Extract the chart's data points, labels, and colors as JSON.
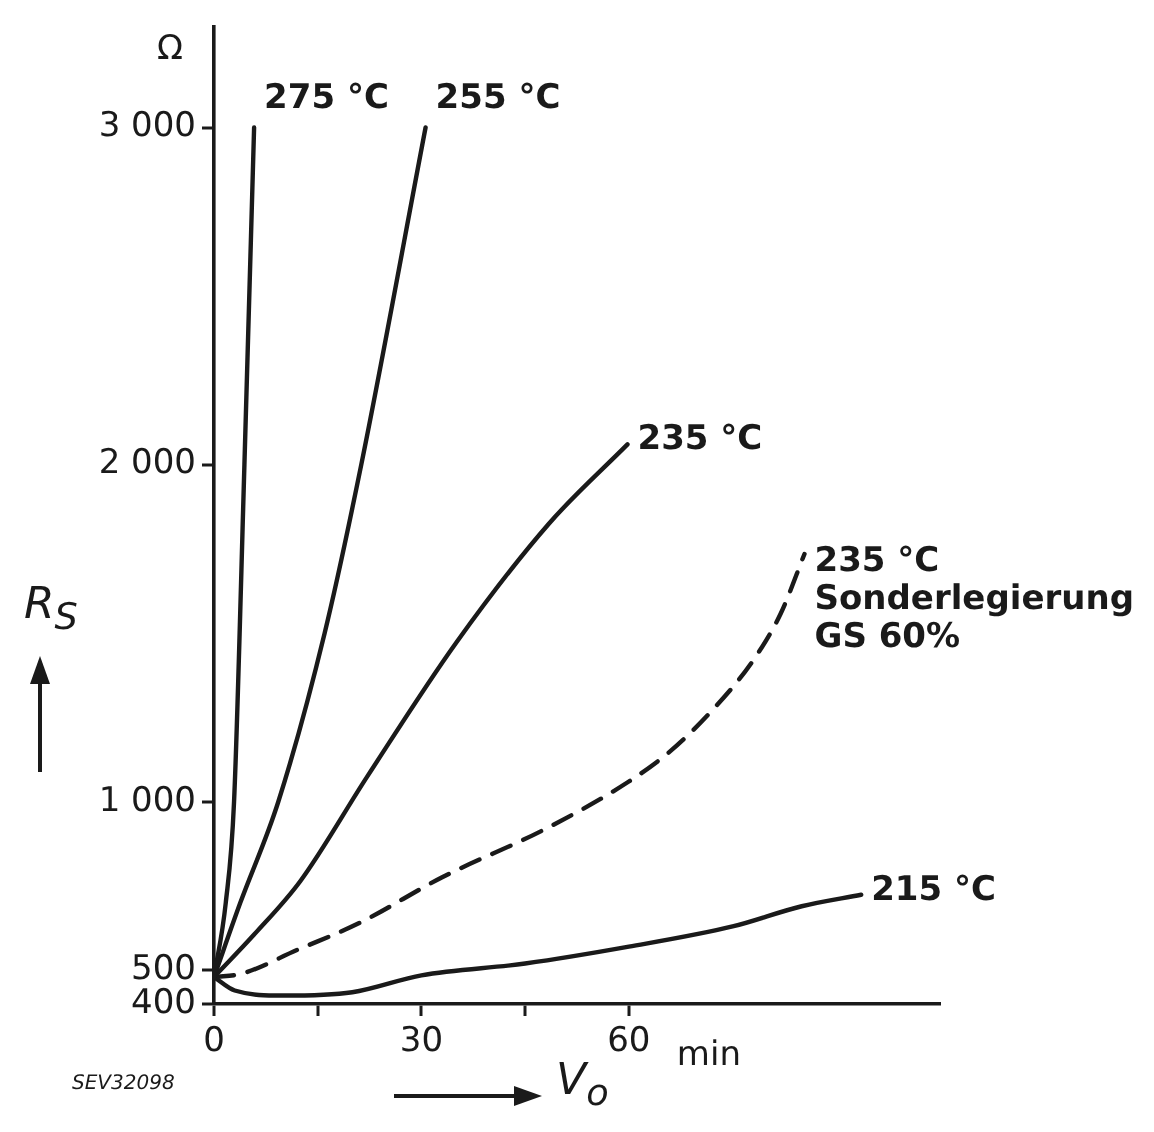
{
  "chart_data": {
    "type": "line",
    "xlabel": "V$_{o}$",
    "ylabel": "R$_{S}$",
    "xlim": [
      0,
      105
    ],
    "ylim": [
      400,
      3300
    ],
    "xticks": [
      0,
      {
        "value": 15,
        "label": null
      },
      30,
      {
        "value": 45,
        "label": null
      },
      60
    ],
    "yticks": [
      400,
      500,
      {
        "value": 1000,
        "label": "1 000"
      },
      {
        "value": 2000,
        "label": "2 000"
      },
      {
        "value": 3000,
        "label": "3 000"
      }
    ],
    "grid": false,
    "legend": false,
    "marker": "none",
    "annotations": [
      "Ω",
      "min",
      "SEV32098"
    ],
    "series": [
      {
        "name": "275 °C",
        "color": "#1a1a1a",
        "x": [
          0,
          1.7,
          2.9,
          4.4,
          5.8
        ],
        "values": [
          480,
          700,
          1000,
          2000,
          3000
        ]
      },
      {
        "name": "255 °C",
        "color": "#1a1a1a",
        "x": [
          0,
          3.8,
          9.3,
          16,
          21.3,
          30.6
        ],
        "values": [
          480,
          700,
          1000,
          1500,
          2000,
          3000
        ]
      },
      {
        "name": "235 °C",
        "color": "#1a1a1a",
        "x": [
          0,
          5.8,
          12.5,
          22.2,
          35,
          48.4,
          59.8
        ],
        "values": [
          480,
          606,
          765,
          1076,
          1471,
          1824,
          2060
        ]
      },
      {
        "name": "235 °C\nSonderlegierung\nGS 60%",
        "color": "#1a1a1a",
        "line_style": "dashed",
        "x": [
          0,
          4,
          12,
          21,
          33,
          48,
          60,
          66,
          72,
          78,
          82,
          85.4
        ],
        "values": [
          480,
          490,
          560,
          640,
          776,
          920,
          1060,
          1150,
          1270,
          1420,
          1560,
          1735
        ]
      },
      {
        "name": "215 °C",
        "color": "#1a1a1a",
        "x": [
          0,
          3,
          10,
          20,
          30,
          45,
          60,
          75,
          85,
          93.6
        ],
        "values": [
          480,
          440,
          425,
          435,
          485,
          520,
          570,
          630,
          690,
          724
        ]
      }
    ]
  }
}
